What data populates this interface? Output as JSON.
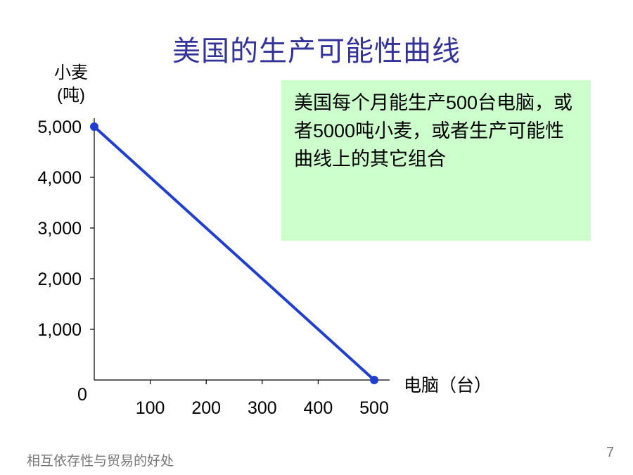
{
  "title": "美国的生产可能性曲线",
  "note": "美国每个月能生产500台电脑，或者5000吨小麦，或者生产可能性曲线上的其它组合",
  "footer": "相互依存性与贸易的好处",
  "page_number": "7",
  "chart_data": {
    "type": "line",
    "title": "美国的生产可能性曲线",
    "xlabel": "电脑（台）",
    "ylabel_line1": "小麦",
    "ylabel_line2": "(吨)",
    "origin_label": "0",
    "xlim": [
      0,
      500
    ],
    "ylim": [
      0,
      5000
    ],
    "x_ticks": [
      100,
      200,
      300,
      400,
      500
    ],
    "x_tick_labels": [
      "100",
      "200",
      "300",
      "400",
      "500"
    ],
    "y_ticks": [
      1000,
      2000,
      3000,
      4000,
      5000
    ],
    "y_tick_labels": [
      "1,000",
      "2,000",
      "3,000",
      "4,000",
      "5,000"
    ],
    "series": [
      {
        "points": [
          {
            "x": 0,
            "y": 5000
          },
          {
            "x": 500,
            "y": 0
          }
        ]
      }
    ],
    "line_color": "#1f3fcc",
    "grid": false
  }
}
